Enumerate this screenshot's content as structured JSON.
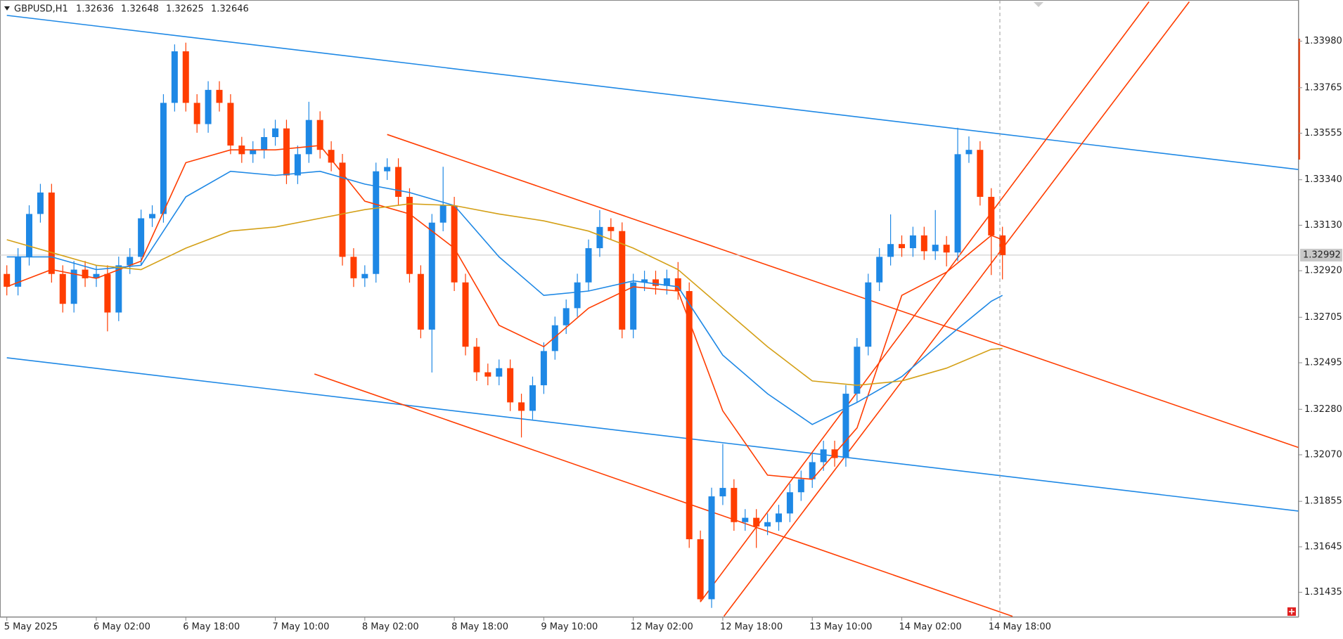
{
  "chart_data": {
    "type": "candlestick",
    "title": "GBPUSD,H1",
    "ohlc": [
      1.32636,
      1.32648,
      1.32625,
      1.32646
    ],
    "up_color": "#1e88e5",
    "down_color": "#ff3d00",
    "ylim": [
      1.3132,
      1.3417
    ],
    "yticks": [
      {
        "value": 1.3398,
        "label": "1.33980"
      },
      1.33765,
      1.33555,
      {
        "value": 1.3334,
        "label": "1.33340"
      },
      {
        "value": 1.3313,
        "label": "1.33130"
      },
      {
        "value": 1.3292,
        "label": "1.32920"
      },
      1.32705,
      1.32495,
      {
        "value": 1.3228,
        "label": "1.32280"
      },
      {
        "value": 1.3207,
        "label": "1.32070"
      },
      1.31855,
      1.31645,
      1.31435
    ],
    "xticks": [
      {
        "value": 0,
        "label": "5 May 2025"
      },
      {
        "value": 8,
        "label": "6 May 02:00"
      },
      {
        "value": 16,
        "label": "6 May 18:00"
      },
      {
        "value": 24,
        "label": "7 May 10:00"
      },
      {
        "value": 32,
        "label": "8 May 02:00"
      },
      {
        "value": 40,
        "label": "8 May 18:00"
      },
      {
        "value": 48,
        "label": "9 May 10:00"
      },
      {
        "value": 56,
        "label": "12 May 02:00"
      },
      {
        "value": 64,
        "label": "12 May 18:00"
      },
      {
        "value": 72,
        "label": "13 May 10:00"
      },
      {
        "value": 80,
        "label": "14 May 02:00"
      },
      {
        "value": 88,
        "label": "14 May 18:00"
      }
    ],
    "open": [
      1.32905,
      1.32846,
      1.32984,
      1.33182,
      1.33281,
      1.32905,
      1.32767,
      1.32925,
      1.32885,
      1.32905,
      1.32727,
      1.32945,
      1.32984,
      1.33162,
      1.33182,
      1.33695,
      1.33933,
      1.33695,
      1.33597,
      1.33755,
      1.33695,
      1.33498,
      1.33458,
      1.33478,
      1.33537,
      1.33577,
      1.3336,
      1.33458,
      1.33616,
      1.33478,
      1.33419,
      1.32984,
      1.32885,
      1.32905,
      1.33379,
      1.33399,
      1.33261,
      1.32905,
      1.32648,
      1.33142,
      1.33221,
      1.32866,
      1.32569,
      1.32451,
      1.32431,
      1.3247,
      1.32312,
      1.32273,
      1.32391,
      1.32549,
      1.32668,
      1.32747,
      1.32866,
      1.33024,
      1.33122,
      1.33103,
      1.32648,
      1.32866,
      1.3288,
      1.3285,
      1.32885,
      1.32826,
      1.3168,
      1.31403,
      1.31878,
      1.31917,
      1.31759,
      1.31779,
      1.31739,
      1.31759,
      1.31799,
      1.31897,
      1.31957,
      1.32036,
      1.32095,
      1.32055,
      1.32352,
      1.32569,
      1.32866,
      1.32984,
      1.33043,
      1.33024,
      1.33083,
      1.3301,
      1.3304,
      1.33004,
      1.33458,
      1.33478,
      1.33261,
      1.33083
    ],
    "high": [
      1.32945,
      1.33024,
      1.33222,
      1.33321,
      1.33321,
      1.32945,
      1.32965,
      1.32965,
      1.32945,
      1.32945,
      1.32985,
      1.33024,
      1.33202,
      1.33222,
      1.33735,
      1.33965,
      1.33973,
      1.33735,
      1.33795,
      1.33795,
      1.33735,
      1.33538,
      1.33518,
      1.33577,
      1.33617,
      1.33617,
      1.33498,
      1.337,
      1.33656,
      1.33518,
      1.33459,
      1.33024,
      1.32945,
      1.33419,
      1.33439,
      1.33439,
      1.33301,
      1.32945,
      1.33182,
      1.334,
      1.33261,
      1.32906,
      1.32609,
      1.32491,
      1.3251,
      1.3251,
      1.32352,
      1.32431,
      1.32589,
      1.32708,
      1.32787,
      1.32906,
      1.33064,
      1.332,
      1.33162,
      1.33143,
      1.32906,
      1.3292,
      1.3292,
      1.32925,
      1.3296,
      1.32866,
      1.3172,
      1.31918,
      1.3212,
      1.31957,
      1.31819,
      1.31819,
      1.31799,
      1.31839,
      1.31937,
      1.31997,
      1.32076,
      1.32135,
      1.32135,
      1.32392,
      1.32609,
      1.32906,
      1.33024,
      1.3318,
      1.33083,
      1.33123,
      1.33123,
      1.332,
      1.3308,
      1.3358,
      1.3354,
      1.33518,
      1.33301,
      1.33123
    ],
    "low": [
      1.32806,
      1.32806,
      1.32944,
      1.33142,
      1.32865,
      1.32727,
      1.32727,
      1.32845,
      1.32845,
      1.3264,
      1.32687,
      1.32905,
      1.32944,
      1.33122,
      1.33142,
      1.33655,
      1.33655,
      1.33557,
      1.33557,
      1.33655,
      1.33458,
      1.33418,
      1.33418,
      1.33438,
      1.33497,
      1.3332,
      1.3332,
      1.33418,
      1.33438,
      1.33379,
      1.32944,
      1.32845,
      1.32845,
      1.32865,
      1.33339,
      1.33221,
      1.32865,
      1.32608,
      1.3245,
      1.33102,
      1.32826,
      1.32529,
      1.32411,
      1.32391,
      1.32391,
      1.32272,
      1.3215,
      1.32233,
      1.32351,
      1.32509,
      1.32628,
      1.32707,
      1.32826,
      1.32984,
      1.33063,
      1.32608,
      1.32608,
      1.32826,
      1.3281,
      1.3281,
      1.32786,
      1.3164,
      1.3139,
      1.31363,
      1.31838,
      1.31719,
      1.31719,
      1.3164,
      1.31699,
      1.31719,
      1.31759,
      1.31857,
      1.31917,
      1.31996,
      1.32015,
      1.32015,
      1.32312,
      1.32529,
      1.32826,
      1.32944,
      1.32984,
      1.32984,
      1.3297,
      1.3297,
      1.3294,
      1.32964,
      1.33418,
      1.33221,
      1.329,
      1.3288
    ],
    "close": [
      1.32846,
      1.32984,
      1.33182,
      1.33281,
      1.32905,
      1.32767,
      1.32925,
      1.32885,
      1.32905,
      1.32727,
      1.32945,
      1.32984,
      1.33162,
      1.33182,
      1.33695,
      1.33933,
      1.33695,
      1.33597,
      1.33755,
      1.33695,
      1.33498,
      1.33458,
      1.33478,
      1.33537,
      1.33577,
      1.3336,
      1.33458,
      1.33616,
      1.33478,
      1.33419,
      1.32984,
      1.32885,
      1.32905,
      1.33379,
      1.33399,
      1.33261,
      1.32905,
      1.32648,
      1.33142,
      1.33221,
      1.32866,
      1.32569,
      1.32451,
      1.32431,
      1.3247,
      1.32312,
      1.32273,
      1.32391,
      1.32549,
      1.32668,
      1.32747,
      1.32866,
      1.33024,
      1.33122,
      1.33103,
      1.32648,
      1.32866,
      1.3288,
      1.3285,
      1.32885,
      1.32826,
      1.3168,
      1.31403,
      1.31878,
      1.31917,
      1.31759,
      1.31779,
      1.31739,
      1.31759,
      1.31799,
      1.31897,
      1.31957,
      1.32036,
      1.32095,
      1.32055,
      1.32352,
      1.32569,
      1.32866,
      1.32984,
      1.33043,
      1.33024,
      1.33083,
      1.3301,
      1.3304,
      1.33004,
      1.33458,
      1.33478,
      1.33261,
      1.33083,
      1.32992
    ],
    "ma": {
      "x": [
        0,
        4,
        8,
        12,
        16,
        20,
        24,
        28,
        32,
        36,
        40,
        44,
        48,
        52,
        56,
        60,
        64,
        68,
        72,
        76,
        80,
        84,
        88,
        89
      ],
      "series": [
        {
          "color": "#ff3d00",
          "values": [
            1.32846,
            1.32925,
            1.32885,
            1.32964,
            1.33419,
            1.33478,
            1.33478,
            1.33498,
            1.33241,
            1.33182,
            1.33024,
            1.32668,
            1.32569,
            1.32747,
            1.32846,
            1.32826,
            1.32273,
            1.31976,
            1.31957,
            1.32194,
            1.32806,
            1.32913,
            1.33083,
            1.33063
          ]
        },
        {
          "color": "#1e88e5",
          "values": [
            1.32984,
            1.32984,
            1.32925,
            1.32945,
            1.33261,
            1.33379,
            1.3336,
            1.33379,
            1.3332,
            1.33281,
            1.33221,
            1.32984,
            1.32806,
            1.32826,
            1.32873,
            1.32846,
            1.3253,
            1.32352,
            1.3221,
            1.32312,
            1.32431,
            1.32609,
            1.32779,
            1.32806
          ]
        },
        {
          "color": "#d4a017",
          "values": [
            1.33063,
            1.33004,
            1.32945,
            1.32925,
            1.33024,
            1.33103,
            1.33122,
            1.33162,
            1.33202,
            1.33229,
            1.33221,
            1.33182,
            1.3315,
            1.33103,
            1.33024,
            1.32925,
            1.32747,
            1.32569,
            1.32411,
            1.32391,
            1.32411,
            1.3247,
            1.32557,
            1.32561
          ]
        }
      ]
    },
    "trendlines": [
      {
        "color": "#1e88e5",
        "x": [
          0,
          115.5
        ],
        "y": [
          1.34099,
          1.33387
        ]
      },
      {
        "color": "#1e88e5",
        "x": [
          0,
          115.5
        ],
        "y": [
          1.32518,
          1.3181
        ]
      },
      {
        "color": "#ff3d00",
        "x": [
          34,
          115.5
        ],
        "y": [
          1.33549,
          1.32103
        ]
      },
      {
        "color": "#ff3d00",
        "x": [
          27.5,
          89.9
        ],
        "y": [
          1.32443,
          1.31324
        ]
      },
      {
        "color": "#ff3d00",
        "x": [
          62,
          102.1
        ],
        "y": [
          1.31391,
          1.34162
        ]
      },
      {
        "color": "#ff3d00",
        "x": [
          64.1,
          105.7
        ],
        "y": [
          1.31324,
          1.34162
        ]
      }
    ],
    "current_price": 1.32992
  }
}
